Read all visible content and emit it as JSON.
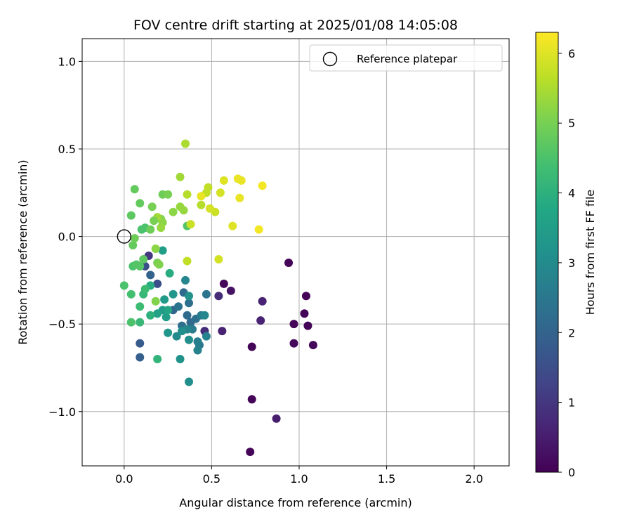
{
  "chart_data": {
    "type": "scatter",
    "title": "FOV centre drift starting at 2025/01/08 14:05:08",
    "xlabel": "Angular distance from reference (arcmin)",
    "ylabel": "Rotation from reference (arcmin)",
    "xlim": [
      -0.24,
      2.2
    ],
    "ylim": [
      -1.31,
      1.13
    ],
    "xticks": [
      0.0,
      0.5,
      1.0,
      1.5,
      2.0
    ],
    "xtick_labels": [
      "0.0",
      "0.5",
      "1.0",
      "1.5",
      "2.0"
    ],
    "yticks": [
      1.0,
      0.5,
      0.0,
      -0.5,
      -1.0
    ],
    "ytick_labels": [
      "1.0",
      "0.5",
      "0.0",
      "−0.5",
      "−1.0"
    ],
    "grid": true,
    "legend": {
      "position": "top-right",
      "entries": [
        "Reference platepar"
      ]
    },
    "reference_point": {
      "x": 0.0,
      "y": 0.0,
      "marker": "open-circle"
    },
    "colorbar": {
      "label": "Hours from first FF file",
      "range": [
        0,
        6.3
      ],
      "ticks": [
        0,
        1,
        2,
        3,
        4,
        5,
        6
      ],
      "tick_labels": [
        "0",
        "1",
        "2",
        "3",
        "4",
        "5",
        "6"
      ],
      "colormap": "viridis"
    },
    "points": [
      [
        0.94,
        -0.15,
        0.05
      ],
      [
        1.04,
        -0.34,
        0.05
      ],
      [
        1.03,
        -0.44,
        0.05
      ],
      [
        0.97,
        -0.5,
        0.05
      ],
      [
        1.05,
        -0.51,
        0.05
      ],
      [
        0.97,
        -0.61,
        0.1
      ],
      [
        1.08,
        -0.62,
        0.1
      ],
      [
        0.73,
        -0.63,
        0.05
      ],
      [
        0.73,
        -0.93,
        0.05
      ],
      [
        0.72,
        -1.23,
        0.05
      ],
      [
        0.57,
        -0.27,
        0.1
      ],
      [
        0.61,
        -0.31,
        0.3
      ],
      [
        0.87,
        -1.04,
        0.5
      ],
      [
        0.79,
        -0.37,
        0.6
      ],
      [
        0.78,
        -0.48,
        0.6
      ],
      [
        0.56,
        -0.54,
        0.6
      ],
      [
        0.54,
        -0.34,
        0.8
      ],
      [
        0.46,
        -0.54,
        0.8
      ],
      [
        0.14,
        -0.11,
        1.0
      ],
      [
        0.19,
        -0.27,
        1.5
      ],
      [
        0.12,
        -0.17,
        1.5
      ],
      [
        0.09,
        -0.61,
        1.8
      ],
      [
        0.09,
        -0.69,
        1.9
      ],
      [
        0.15,
        -0.22,
        2.0
      ],
      [
        0.28,
        -0.42,
        2.1
      ],
      [
        0.34,
        -0.32,
        2.2
      ],
      [
        0.36,
        -0.45,
        2.2
      ],
      [
        0.38,
        -0.49,
        2.2
      ],
      [
        0.41,
        -0.47,
        2.3
      ],
      [
        0.37,
        -0.38,
        2.3
      ],
      [
        0.33,
        -0.51,
        2.3
      ],
      [
        0.31,
        -0.4,
        2.4
      ],
      [
        0.43,
        -0.62,
        2.5
      ],
      [
        0.47,
        -0.33,
        2.4
      ],
      [
        0.39,
        -0.53,
        2.6
      ],
      [
        0.44,
        -0.45,
        2.6
      ],
      [
        0.42,
        -0.6,
        2.7
      ],
      [
        0.42,
        -0.65,
        2.8
      ],
      [
        0.47,
        -0.57,
        2.8
      ],
      [
        0.46,
        -0.45,
        2.9
      ],
      [
        0.35,
        -0.25,
        2.9
      ],
      [
        0.36,
        -0.53,
        2.9
      ],
      [
        0.3,
        -0.57,
        3.0
      ],
      [
        0.33,
        -0.54,
        3.1
      ],
      [
        0.37,
        -0.59,
        3.1
      ],
      [
        0.32,
        -0.7,
        3.2
      ],
      [
        0.37,
        -0.83,
        3.1
      ],
      [
        0.28,
        -0.33,
        3.3
      ],
      [
        0.25,
        -0.55,
        3.3
      ],
      [
        0.22,
        -0.42,
        3.4
      ],
      [
        0.23,
        -0.36,
        3.4
      ],
      [
        0.22,
        -0.08,
        3.5
      ],
      [
        0.24,
        -0.46,
        3.5
      ],
      [
        0.19,
        -0.44,
        3.6
      ],
      [
        0.37,
        -0.34,
        3.2
      ],
      [
        0.25,
        -0.42,
        3.7
      ],
      [
        0.26,
        -0.21,
        3.9
      ],
      [
        0.15,
        -0.28,
        3.9
      ],
      [
        0.15,
        -0.45,
        4.0
      ],
      [
        0.19,
        -0.7,
        4.1
      ],
      [
        0.09,
        -0.49,
        4.2
      ],
      [
        0.09,
        -0.4,
        4.3
      ],
      [
        0.11,
        -0.33,
        4.2
      ],
      [
        0.12,
        -0.3,
        4.3
      ],
      [
        0.04,
        -0.33,
        4.4
      ],
      [
        0.0,
        -0.28,
        4.5
      ],
      [
        0.04,
        -0.49,
        4.5
      ],
      [
        0.05,
        -0.17,
        4.5
      ],
      [
        0.09,
        -0.17,
        4.6
      ],
      [
        0.11,
        -0.13,
        4.7
      ],
      [
        0.1,
        0.04,
        4.5
      ],
      [
        0.12,
        0.05,
        4.5
      ],
      [
        0.04,
        0.12,
        4.7
      ],
      [
        0.09,
        0.19,
        4.8
      ],
      [
        0.06,
        0.27,
        4.8
      ],
      [
        0.05,
        -0.05,
        4.8
      ],
      [
        0.06,
        -0.01,
        4.9
      ],
      [
        0.15,
        0.04,
        4.9
      ],
      [
        0.36,
        0.06,
        4.6
      ],
      [
        0.22,
        0.24,
        4.9
      ],
      [
        0.25,
        0.24,
        5.0
      ],
      [
        0.16,
        0.17,
        5.0
      ],
      [
        0.19,
        -0.15,
        5.0
      ],
      [
        0.18,
        -0.37,
        5.1
      ],
      [
        0.2,
        -0.16,
        5.1
      ],
      [
        0.21,
        0.1,
        5.1
      ],
      [
        0.22,
        0.08,
        5.2
      ],
      [
        0.28,
        0.14,
        5.2
      ],
      [
        0.32,
        0.17,
        5.3
      ],
      [
        0.34,
        0.15,
        5.3
      ],
      [
        0.32,
        0.34,
        5.4
      ],
      [
        0.35,
        0.53,
        5.5
      ],
      [
        0.36,
        0.24,
        5.6
      ],
      [
        0.44,
        0.18,
        5.6
      ],
      [
        0.47,
        0.25,
        5.7
      ],
      [
        0.48,
        0.28,
        5.7
      ],
      [
        0.36,
        -0.14,
        5.7
      ],
      [
        0.38,
        0.07,
        5.8
      ],
      [
        0.52,
        0.14,
        5.8
      ],
      [
        0.54,
        -0.13,
        5.9
      ],
      [
        0.55,
        0.25,
        5.9
      ],
      [
        0.57,
        0.32,
        6.0
      ],
      [
        0.62,
        0.06,
        6.0
      ],
      [
        0.65,
        0.33,
        6.1
      ],
      [
        0.67,
        0.32,
        6.1
      ],
      [
        0.66,
        0.22,
        6.1
      ],
      [
        0.77,
        0.04,
        6.2
      ],
      [
        0.79,
        0.29,
        6.2
      ],
      [
        0.44,
        0.23,
        6.1
      ],
      [
        0.49,
        0.16,
        5.9
      ],
      [
        0.19,
        0.11,
        5.4
      ],
      [
        0.18,
        -0.07,
        5.2
      ],
      [
        0.21,
        0.05,
        5.3
      ],
      [
        0.07,
        -0.16,
        4.6
      ],
      [
        0.17,
        0.09,
        5.0
      ]
    ]
  }
}
